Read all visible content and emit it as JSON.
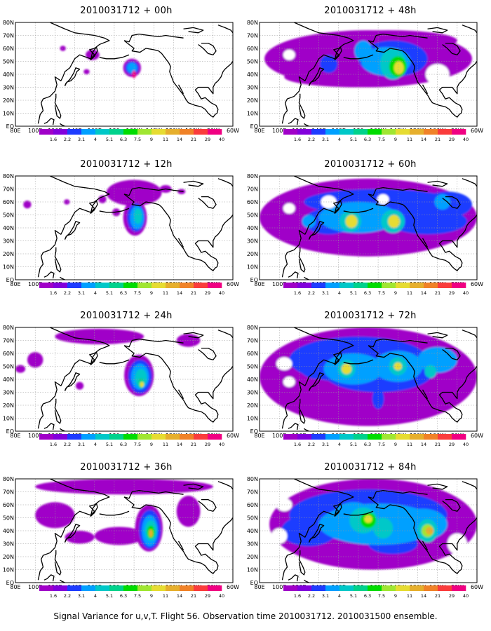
{
  "figure_caption": "Signal Variance for u,v,T. Flight 56. Observation time 2010031712. 2010031500 ensemble.",
  "panels": [
    {
      "title": "2010031712 + 00h"
    },
    {
      "title": "2010031712 + 12h"
    },
    {
      "title": "2010031712 + 24h"
    },
    {
      "title": "2010031712 + 36h"
    },
    {
      "title": "2010031712 + 48h"
    },
    {
      "title": "2010031712 + 60h"
    },
    {
      "title": "2010031712 + 72h"
    },
    {
      "title": "2010031712 + 84h"
    }
  ],
  "axes": {
    "x_ticks": [
      "80E",
      "100E",
      "120E",
      "140E",
      "160E",
      "180",
      "160W",
      "140W",
      "120W",
      "100W",
      "80W",
      "60W"
    ],
    "y_ticks": [
      "EQ",
      "10N",
      "20N",
      "30N",
      "40N",
      "50N",
      "60N",
      "70N",
      "80N"
    ]
  },
  "colorbar": {
    "labels": [
      "1.6",
      "2.2",
      "3.1",
      "4",
      "5.1",
      "6.3",
      "7.5",
      "9",
      "11",
      "14",
      "21",
      "29",
      "40"
    ],
    "colors": [
      "#a000c8",
      "#8200dc",
      "#1e3cff",
      "#00a0ff",
      "#00c8c8",
      "#00d28c",
      "#00dc00",
      "#a0e632",
      "#e6dc32",
      "#e6af2d",
      "#f08228",
      "#fa3c3c",
      "#f00082"
    ]
  },
  "map_extent": {
    "lon_min": 80,
    "lon_max": 300,
    "lat_min": 0,
    "lat_max": 80
  }
}
